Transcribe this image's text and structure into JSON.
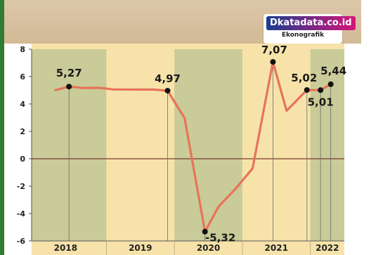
{
  "brand": {
    "logo_text": "Dkatadata.co.id",
    "logo_subtitle": "Ekonografik"
  },
  "colors": {
    "background": "#f7e3aa",
    "shade": "#c9cb98",
    "line": "#e8735a",
    "marker": "#111111",
    "zero_line": "#7a3b2e",
    "header": "#d6bf9c"
  },
  "chart_data": {
    "type": "line",
    "title": "",
    "xlabel": "",
    "ylabel": "",
    "ylim": [
      -6,
      8
    ],
    "yticks": [
      "8",
      "6",
      "4",
      "2",
      "0",
      "-2",
      "-4",
      "-6"
    ],
    "years": [
      "2018",
      "2019",
      "2020",
      "2021",
      "2022"
    ],
    "shaded_years": [
      "2018",
      "2020",
      "2022"
    ],
    "grid": false,
    "series": [
      {
        "points": [
          {
            "x": 2017.8,
            "y": 5.01
          },
          {
            "x": 2018.0,
            "y": 5.27
          },
          {
            "x": 2018.2,
            "y": 5.17
          },
          {
            "x": 2018.45,
            "y": 5.18
          },
          {
            "x": 2018.65,
            "y": 5.06
          },
          {
            "x": 2019.0,
            "y": 5.05
          },
          {
            "x": 2019.25,
            "y": 5.05
          },
          {
            "x": 2019.45,
            "y": 4.97
          },
          {
            "x": 2019.7,
            "y": 2.97
          },
          {
            "x": 2020.0,
            "y": -5.32
          },
          {
            "x": 2020.2,
            "y": -3.49
          },
          {
            "x": 2020.45,
            "y": -2.19
          },
          {
            "x": 2020.7,
            "y": -0.71
          },
          {
            "x": 2021.0,
            "y": 7.07
          },
          {
            "x": 2021.2,
            "y": 3.51
          },
          {
            "x": 2021.5,
            "y": 5.02
          },
          {
            "x": 2021.7,
            "y": 5.01
          },
          {
            "x": 2021.85,
            "y": 5.44
          }
        ],
        "labeled_points": [
          {
            "x": 2018.0,
            "y": 5.27,
            "label": "5,27"
          },
          {
            "x": 2019.45,
            "y": 4.97,
            "label": "4,97"
          },
          {
            "x": 2020.0,
            "y": -5.32,
            "label": "-5,32"
          },
          {
            "x": 2021.0,
            "y": 7.07,
            "label": "7,07"
          },
          {
            "x": 2021.5,
            "y": 5.02,
            "label": "5,02"
          },
          {
            "x": 2021.7,
            "y": 5.01,
            "label": "5,01"
          },
          {
            "x": 2021.85,
            "y": 5.44,
            "label": "5,44"
          }
        ]
      }
    ]
  }
}
